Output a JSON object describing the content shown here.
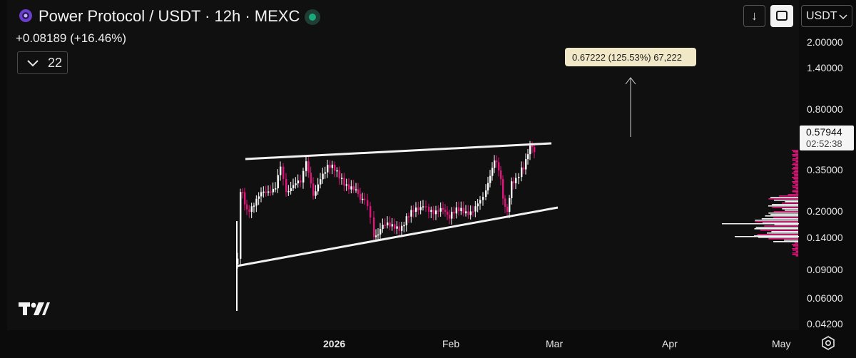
{
  "header": {
    "title": "Power Protocol / USDT · 12h · MEXC",
    "change": "+0.08189 (+16.46%)",
    "indicator_count": "22",
    "currency": "USDT"
  },
  "price_axis": {
    "ticks": [
      "2.00000",
      "1.40000",
      "0.80000",
      "0.35000",
      "0.20000",
      "0.14000",
      "0.09000",
      "0.06000",
      "0.04200"
    ],
    "current_price": "0.57944",
    "countdown": "02:52:38"
  },
  "time_axis": {
    "ticks": [
      "2026",
      "Feb",
      "Mar",
      "Apr",
      "May"
    ]
  },
  "measure_label": "0.67222 (125.53%) 67,222",
  "colors": {
    "up": "#ffffff",
    "down": "#e0157a",
    "live": "#19a97b",
    "measure_bg": "#f1e8c8"
  },
  "icons": [
    "down-arrow-icon",
    "fullscreen-icon",
    "chevron-down-icon",
    "tradingview-logo-icon",
    "settings-icon",
    "live-dot-icon"
  ]
}
